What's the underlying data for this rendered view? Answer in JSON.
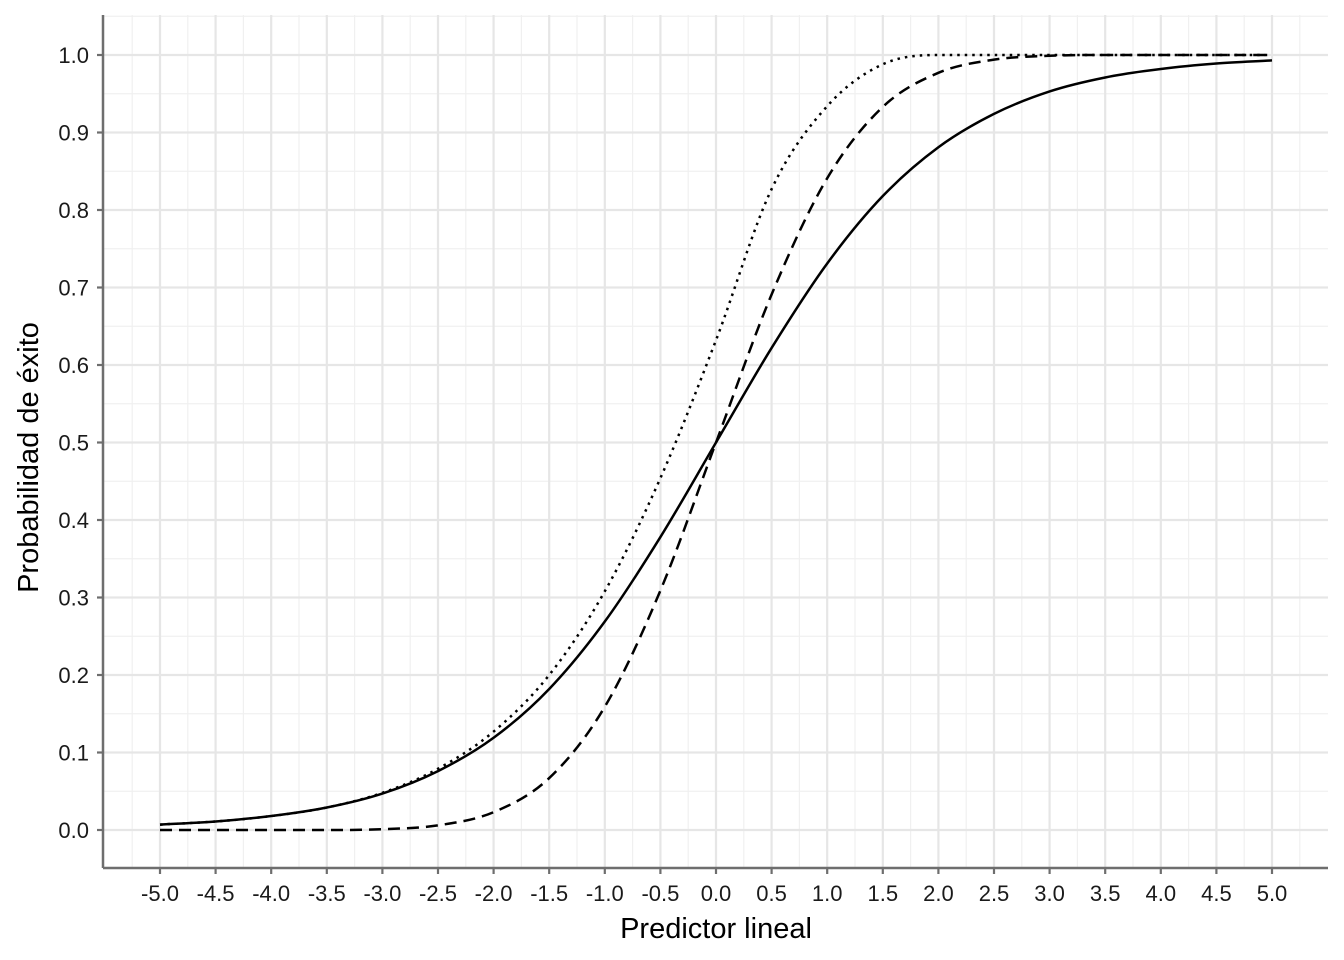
{
  "chart_data": {
    "type": "line",
    "title": "",
    "xlabel": "Predictor lineal",
    "ylabel": "Probabilidad de éxito",
    "xlim": [
      -5.0,
      5.0
    ],
    "ylim": [
      0.0,
      1.0
    ],
    "xticks": [
      "-5.0",
      "-4.5",
      "-4.0",
      "-3.5",
      "-3.0",
      "-2.5",
      "-2.0",
      "-1.5",
      "-1.0",
      "-0.5",
      "0.0",
      "0.5",
      "1.0",
      "1.5",
      "2.0",
      "2.5",
      "3.0",
      "3.5",
      "4.0",
      "4.5",
      "5.0"
    ],
    "yticks": [
      "0.0",
      "0.1",
      "0.2",
      "0.3",
      "0.4",
      "0.5",
      "0.6",
      "0.7",
      "0.8",
      "0.9",
      "1.0"
    ],
    "grid": true,
    "legend": "none",
    "series": [
      {
        "style": "solid",
        "x": [
          -5.0,
          -4.5,
          -4.0,
          -3.5,
          -3.0,
          -2.5,
          -2.0,
          -1.5,
          -1.0,
          -0.5,
          0.0,
          0.5,
          1.0,
          1.5,
          2.0,
          2.5,
          3.0,
          3.5,
          4.0,
          4.5,
          5.0
        ],
        "y": [
          0.007,
          0.011,
          0.018,
          0.029,
          0.047,
          0.076,
          0.119,
          0.182,
          0.269,
          0.378,
          0.5,
          0.622,
          0.731,
          0.818,
          0.881,
          0.924,
          0.953,
          0.971,
          0.982,
          0.989,
          0.993
        ]
      },
      {
        "style": "dashed",
        "x": [
          -5.0,
          -4.5,
          -4.0,
          -3.5,
          -3.0,
          -2.5,
          -2.0,
          -1.5,
          -1.0,
          -0.5,
          0.0,
          0.5,
          1.0,
          1.5,
          2.0,
          2.5,
          3.0,
          3.5,
          4.0,
          4.5,
          5.0
        ],
        "y": [
          0.0,
          0.0,
          0.0,
          0.0,
          0.001,
          0.006,
          0.023,
          0.067,
          0.159,
          0.309,
          0.5,
          0.691,
          0.841,
          0.933,
          0.977,
          0.994,
          0.999,
          1.0,
          1.0,
          1.0,
          1.0
        ]
      },
      {
        "style": "dotted",
        "x": [
          -5.0,
          -4.5,
          -4.0,
          -3.5,
          -3.0,
          -2.5,
          -2.0,
          -1.5,
          -1.0,
          -0.5,
          0.0,
          0.5,
          1.0,
          1.5,
          2.0,
          2.5,
          3.0,
          3.5,
          4.0,
          4.5,
          5.0
        ],
        "y": [
          0.007,
          0.011,
          0.018,
          0.029,
          0.048,
          0.079,
          0.127,
          0.2,
          0.308,
          0.454,
          0.632,
          0.827,
          0.934,
          0.988,
          1.0,
          1.0,
          1.0,
          1.0,
          1.0,
          1.0,
          1.0
        ]
      }
    ]
  }
}
